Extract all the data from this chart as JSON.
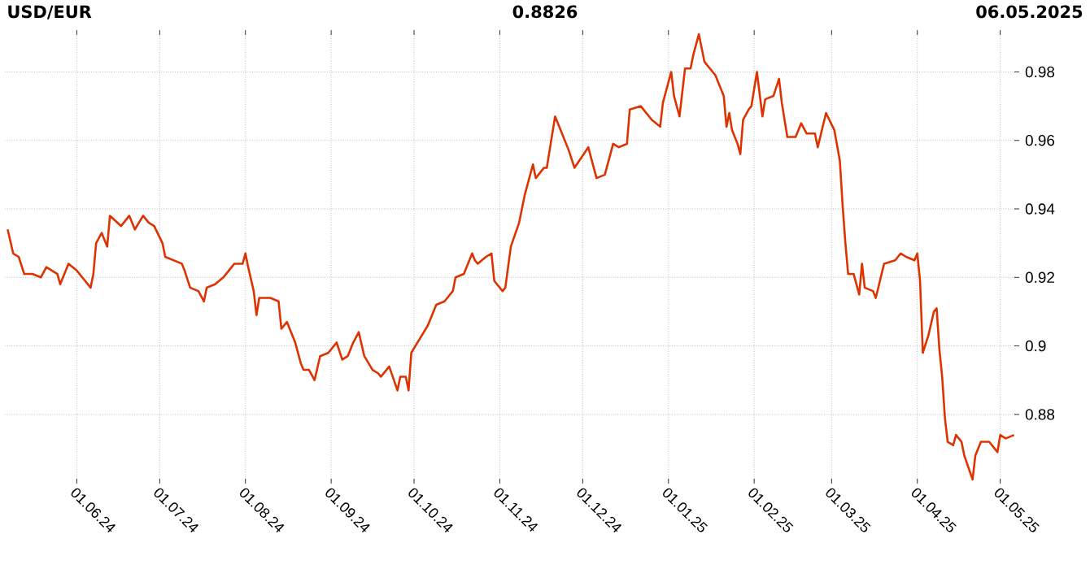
{
  "chart_data": {
    "type": "line",
    "title": "USD/EUR",
    "annotations": [
      "0.8826",
      "06.05.2025"
    ],
    "x": [
      "2024-05-07",
      "2024-05-09",
      "2024-05-11",
      "2024-05-13",
      "2024-05-16",
      "2024-05-19",
      "2024-05-21",
      "2024-05-25",
      "2024-05-26",
      "2024-05-29",
      "2024-06-01",
      "2024-06-04",
      "2024-06-06",
      "2024-06-07",
      "2024-06-08",
      "2024-06-10",
      "2024-06-12",
      "2024-06-13",
      "2024-06-17",
      "2024-06-20",
      "2024-06-22",
      "2024-06-25",
      "2024-06-27",
      "2024-06-29",
      "2024-07-02",
      "2024-07-03",
      "2024-07-09",
      "2024-07-10",
      "2024-07-12",
      "2024-07-15",
      "2024-07-17",
      "2024-07-18",
      "2024-07-21",
      "2024-07-24",
      "2024-07-25",
      "2024-07-28",
      "2024-07-31",
      "2024-08-01",
      "2024-08-02",
      "2024-08-04",
      "2024-08-05",
      "2024-08-06",
      "2024-08-10",
      "2024-08-13",
      "2024-08-14",
      "2024-08-16",
      "2024-08-19",
      "2024-08-21",
      "2024-08-22",
      "2024-08-24",
      "2024-08-26",
      "2024-08-28",
      "2024-08-31",
      "2024-09-03",
      "2024-09-05",
      "2024-09-07",
      "2024-09-09",
      "2024-09-11",
      "2024-09-13",
      "2024-09-16",
      "2024-09-18",
      "2024-09-19",
      "2024-09-22",
      "2024-09-25",
      "2024-09-26",
      "2024-09-28",
      "2024-09-29",
      "2024-09-30",
      "2024-10-03",
      "2024-10-06",
      "2024-10-09",
      "2024-10-12",
      "2024-10-15",
      "2024-10-16",
      "2024-10-19",
      "2024-10-22",
      "2024-10-23",
      "2024-10-24",
      "2024-10-27",
      "2024-10-29",
      "2024-10-30",
      "2024-10-31",
      "2024-11-02",
      "2024-11-03",
      "2024-11-05",
      "2024-11-08",
      "2024-11-10",
      "2024-11-13",
      "2024-11-14",
      "2024-11-17",
      "2024-11-18",
      "2024-11-21",
      "2024-11-23",
      "2024-11-26",
      "2024-11-28",
      "2024-12-03",
      "2024-12-06",
      "2024-12-09",
      "2024-12-12",
      "2024-12-14",
      "2024-12-17",
      "2024-12-18",
      "2024-12-22",
      "2024-12-26",
      "2024-12-29",
      "2024-12-30",
      "2025-01-02",
      "2025-01-03",
      "2025-01-05",
      "2025-01-07",
      "2025-01-09",
      "2025-01-10",
      "2025-01-12",
      "2025-01-14",
      "2025-01-17",
      "2025-01-18",
      "2025-01-21",
      "2025-01-22",
      "2025-01-23",
      "2025-01-24",
      "2025-01-26",
      "2025-01-27",
      "2025-01-28",
      "2025-01-30",
      "2025-01-31",
      "2025-02-02",
      "2025-02-04",
      "2025-02-05",
      "2025-02-08",
      "2025-02-10",
      "2025-02-11",
      "2025-02-13",
      "2025-02-16",
      "2025-02-18",
      "2025-02-20",
      "2025-02-23",
      "2025-02-24",
      "2025-02-27",
      "2025-03-02",
      "2025-03-04",
      "2025-03-05",
      "2025-03-06",
      "2025-03-07",
      "2025-03-09",
      "2025-03-11",
      "2025-03-12",
      "2025-03-13",
      "2025-03-16",
      "2025-03-17",
      "2025-03-20",
      "2025-03-24",
      "2025-03-26",
      "2025-03-28",
      "2025-03-31",
      "2025-04-01",
      "2025-04-02",
      "2025-04-03",
      "2025-04-05",
      "2025-04-07",
      "2025-04-08",
      "2025-04-09",
      "2025-04-10",
      "2025-04-11",
      "2025-04-12",
      "2025-04-14",
      "2025-04-15",
      "2025-04-17",
      "2025-04-18",
      "2025-04-21",
      "2025-04-22",
      "2025-04-24",
      "2025-04-27",
      "2025-04-30",
      "2025-05-01",
      "2025-05-03",
      "2025-05-06"
    ],
    "series": [
      {
        "color": "#dd3300",
        "values": [
          0.934,
          0.927,
          0.926,
          0.921,
          0.921,
          0.92,
          0.923,
          0.921,
          0.918,
          0.924,
          0.922,
          0.919,
          0.917,
          0.921,
          0.93,
          0.933,
          0.929,
          0.938,
          0.935,
          0.938,
          0.934,
          0.938,
          0.936,
          0.935,
          0.93,
          0.926,
          0.924,
          0.922,
          0.917,
          0.916,
          0.913,
          0.917,
          0.918,
          0.92,
          0.921,
          0.924,
          0.924,
          0.927,
          0.923,
          0.916,
          0.909,
          0.914,
          0.914,
          0.913,
          0.905,
          0.907,
          0.901,
          0.895,
          0.893,
          0.893,
          0.89,
          0.897,
          0.898,
          0.901,
          0.896,
          0.897,
          0.901,
          0.904,
          0.897,
          0.893,
          0.892,
          0.891,
          0.894,
          0.887,
          0.891,
          0.891,
          0.887,
          0.898,
          0.902,
          0.906,
          0.912,
          0.913,
          0.916,
          0.92,
          0.921,
          0.927,
          0.925,
          0.924,
          0.926,
          0.927,
          0.919,
          0.918,
          0.916,
          0.917,
          0.929,
          0.936,
          0.944,
          0.953,
          0.949,
          0.952,
          0.952,
          0.967,
          0.963,
          0.957,
          0.952,
          0.958,
          0.949,
          0.95,
          0.959,
          0.958,
          0.959,
          0.969,
          0.97,
          0.966,
          0.964,
          0.971,
          0.98,
          0.973,
          0.967,
          0.981,
          0.981,
          0.985,
          0.991,
          0.983,
          0.98,
          0.979,
          0.973,
          0.964,
          0.968,
          0.963,
          0.959,
          0.956,
          0.966,
          0.969,
          0.97,
          0.98,
          0.967,
          0.972,
          0.973,
          0.978,
          0.971,
          0.961,
          0.961,
          0.965,
          0.962,
          0.962,
          0.958,
          0.968,
          0.963,
          0.954,
          0.941,
          0.93,
          0.921,
          0.921,
          0.915,
          0.924,
          0.917,
          0.916,
          0.914,
          0.924,
          0.925,
          0.927,
          0.926,
          0.925,
          0.927,
          0.919,
          0.898,
          0.903,
          0.91,
          0.911,
          0.899,
          0.891,
          0.879,
          0.872,
          0.871,
          0.874,
          0.872,
          0.868,
          0.861,
          0.868,
          0.872,
          0.872,
          0.869,
          0.874,
          0.873,
          0.874
        ]
      }
    ],
    "xlim": [
      "2024-05-06",
      "2025-05-07"
    ],
    "xticks": [
      {
        "value": "2024-06-01",
        "label": "01.06.24"
      },
      {
        "value": "2024-07-01",
        "label": "01.07.24"
      },
      {
        "value": "2024-08-01",
        "label": "01.08.24"
      },
      {
        "value": "2024-09-01",
        "label": "01.09.24"
      },
      {
        "value": "2024-10-01",
        "label": "01.10.24"
      },
      {
        "value": "2024-11-01",
        "label": "01.11.24"
      },
      {
        "value": "2024-12-01",
        "label": "01.12.24"
      },
      {
        "value": "2025-01-01",
        "label": "01.01.25"
      },
      {
        "value": "2025-02-01",
        "label": "01.02.25"
      },
      {
        "value": "2025-03-01",
        "label": "01.03.25"
      },
      {
        "value": "2025-04-01",
        "label": "01.04.25"
      },
      {
        "value": "2025-05-01",
        "label": "01.05.25"
      }
    ],
    "ylim": [
      0.8605,
      0.9915
    ],
    "yticks": [
      0.88,
      0.9,
      0.92,
      0.94,
      0.96,
      0.98
    ],
    "grid": true,
    "line_style": "solid"
  }
}
